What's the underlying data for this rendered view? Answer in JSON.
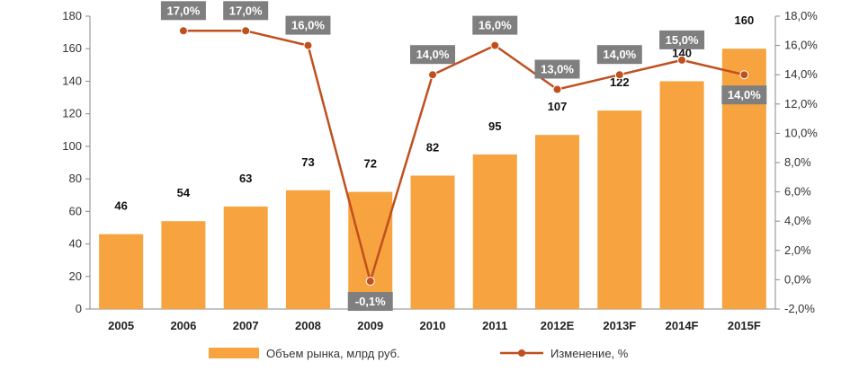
{
  "chart_data": {
    "type": "bar+line",
    "categories": [
      "2005",
      "2006",
      "2007",
      "2008",
      "2009",
      "2010",
      "2011",
      "2012E",
      "2013F",
      "2014F",
      "2015F"
    ],
    "series": [
      {
        "name": "Объем рынка, млрд руб.",
        "type": "bar",
        "axis": "left",
        "color": "#F7A33F",
        "values": [
          46,
          54,
          63,
          73,
          72,
          82,
          95,
          107,
          122,
          140,
          160
        ],
        "labels": [
          "46",
          "54",
          "63",
          "73",
          "72",
          "82",
          "95",
          "107",
          "122",
          "140",
          "160"
        ]
      },
      {
        "name": "Изменение, %",
        "type": "line",
        "axis": "right",
        "color": "#C0501E",
        "values": [
          null,
          17.0,
          17.0,
          16.0,
          -0.1,
          14.0,
          16.0,
          13.0,
          14.0,
          15.0,
          14.0
        ],
        "labels": [
          null,
          "17,0%",
          "17,0%",
          "16,0%",
          "-0,1%",
          "14,0%",
          "16,0%",
          "13,0%",
          "14,0%",
          "15,0%",
          "14,0%"
        ]
      }
    ],
    "y_left": {
      "min": 0,
      "max": 180,
      "step": 20,
      "ticks": [
        "0",
        "20",
        "40",
        "60",
        "80",
        "100",
        "120",
        "140",
        "160",
        "180"
      ]
    },
    "y_right": {
      "min": -2,
      "max": 18,
      "step": 2,
      "ticks": [
        "-2,0%",
        "0,0%",
        "2,0%",
        "4,0%",
        "6,0%",
        "8,0%",
        "10,0%",
        "12,0%",
        "14,0%",
        "16,0%",
        "18,0%"
      ]
    },
    "legend": {
      "position": "bottom",
      "bar_label": "Объем рынка, млрд руб.",
      "line_label": "Изменение, %"
    },
    "label_box_color": "#7F7F7F",
    "title": "",
    "xlabel": "",
    "ylabel": ""
  }
}
